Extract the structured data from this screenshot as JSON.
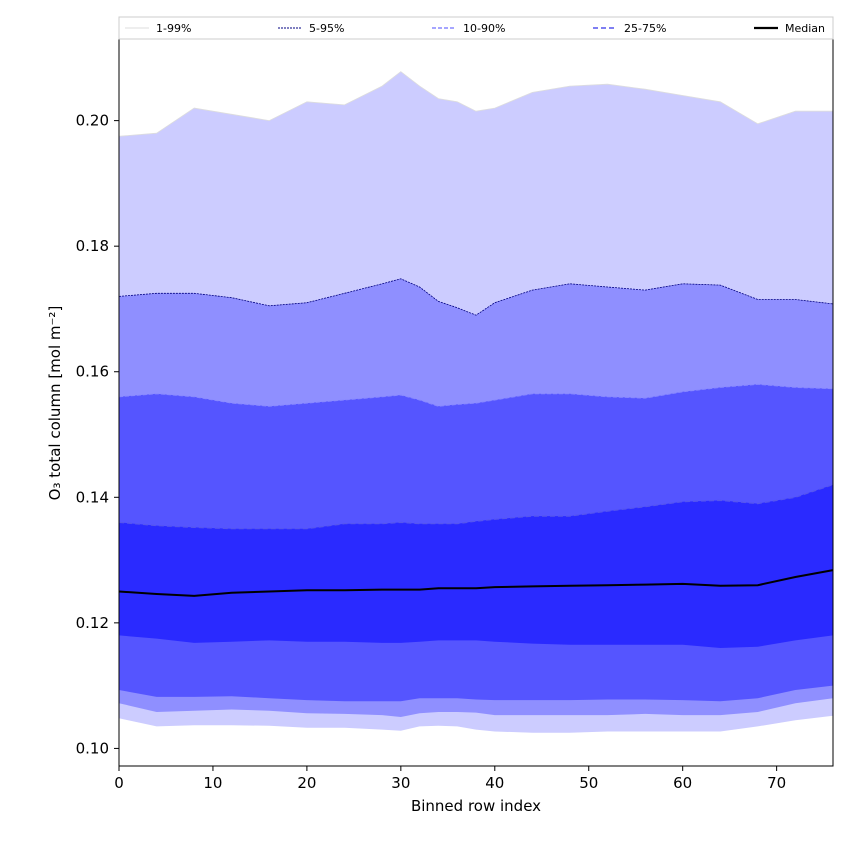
{
  "chart_data": {
    "type": "area",
    "xlabel": "Binned row index",
    "ylabel": "O₃ total column [mol m⁻²]",
    "xlim": [
      0,
      76
    ],
    "ylim": [
      0.0972,
      0.213
    ],
    "xticks": [
      0,
      10,
      20,
      30,
      40,
      50,
      60,
      70
    ],
    "yticks": [
      0.1,
      0.12,
      0.14,
      0.16,
      0.18,
      0.2
    ],
    "grid": false,
    "legend_placement": "top, across the plot width",
    "colors": {
      "band_1_99": "#ccccff",
      "band_5_95": "#8f8fff",
      "band_10_90": "#5555ff",
      "band_25_75": "#2a2aff",
      "median": "#000000",
      "edge_1_99": "#dddddd",
      "edge_5_95": "#000080",
      "edge_10_90": "#8888ff",
      "edge_25_75": "#5555ee"
    },
    "legend": [
      {
        "key": "p1_99",
        "label": "1-99%"
      },
      {
        "key": "p5_95",
        "label": "5-95%"
      },
      {
        "key": "p10_90",
        "label": "10-90%"
      },
      {
        "key": "p25_75",
        "label": "25-75%"
      },
      {
        "key": "median",
        "label": "Median"
      }
    ],
    "x": [
      0,
      4,
      8,
      12,
      16,
      20,
      24,
      28,
      30,
      32,
      34,
      36,
      38,
      40,
      44,
      48,
      52,
      56,
      60,
      64,
      68,
      72,
      76
    ],
    "series": [
      {
        "key": "p1_upper",
        "values": [
          0.1975,
          0.198,
          0.202,
          0.201,
          0.2,
          0.203,
          0.2025,
          0.2055,
          0.2078,
          0.2055,
          0.2035,
          0.203,
          0.2015,
          0.202,
          0.2045,
          0.2055,
          0.2058,
          0.205,
          0.204,
          0.203,
          0.1995,
          0.2015,
          0.2015
        ]
      },
      {
        "key": "p5_upper",
        "values": [
          0.172,
          0.1725,
          0.1725,
          0.1718,
          0.1705,
          0.171,
          0.1725,
          0.174,
          0.1748,
          0.1735,
          0.1712,
          0.1702,
          0.169,
          0.171,
          0.173,
          0.174,
          0.1735,
          0.173,
          0.174,
          0.1738,
          0.1715,
          0.1715,
          0.1708
        ]
      },
      {
        "key": "p10_upper",
        "values": [
          0.156,
          0.1565,
          0.156,
          0.155,
          0.1545,
          0.155,
          0.1555,
          0.156,
          0.1563,
          0.1555,
          0.1545,
          0.1548,
          0.155,
          0.1555,
          0.1565,
          0.1565,
          0.156,
          0.1558,
          0.1568,
          0.1575,
          0.158,
          0.1575,
          0.1573
        ]
      },
      {
        "key": "p25_upper",
        "values": [
          0.136,
          0.1355,
          0.1352,
          0.135,
          0.135,
          0.135,
          0.1358,
          0.1358,
          0.136,
          0.1358,
          0.1358,
          0.1358,
          0.1362,
          0.1365,
          0.137,
          0.137,
          0.1378,
          0.1385,
          0.1393,
          0.1395,
          0.139,
          0.14,
          0.142
        ]
      },
      {
        "key": "median",
        "values": [
          0.125,
          0.1246,
          0.1243,
          0.1248,
          0.125,
          0.1252,
          0.1252,
          0.1253,
          0.1253,
          0.1253,
          0.1255,
          0.1255,
          0.1255,
          0.1257,
          0.1258,
          0.1259,
          0.126,
          0.1261,
          0.1262,
          0.1259,
          0.126,
          0.1273,
          0.1284
        ]
      },
      {
        "key": "p25_lower",
        "values": [
          0.118,
          0.1175,
          0.1168,
          0.117,
          0.1172,
          0.117,
          0.117,
          0.1168,
          0.1168,
          0.117,
          0.1172,
          0.1172,
          0.1172,
          0.117,
          0.1167,
          0.1165,
          0.1165,
          0.1165,
          0.1165,
          0.116,
          0.1162,
          0.1172,
          0.118
        ]
      },
      {
        "key": "p10_lower",
        "values": [
          0.1093,
          0.1082,
          0.1082,
          0.1083,
          0.108,
          0.1077,
          0.1075,
          0.1075,
          0.1075,
          0.108,
          0.108,
          0.108,
          0.1078,
          0.1077,
          0.1077,
          0.1077,
          0.1078,
          0.1078,
          0.1077,
          0.1075,
          0.108,
          0.1093,
          0.11
        ]
      },
      {
        "key": "p5_lower",
        "values": [
          0.1072,
          0.1058,
          0.106,
          0.1062,
          0.106,
          0.1056,
          0.1055,
          0.1053,
          0.105,
          0.1056,
          0.1058,
          0.1058,
          0.1057,
          0.1053,
          0.1053,
          0.1053,
          0.1053,
          0.1055,
          0.1053,
          0.1053,
          0.1058,
          0.1072,
          0.108
        ]
      },
      {
        "key": "p1_lower",
        "values": [
          0.1048,
          0.1035,
          0.1037,
          0.1037,
          0.1036,
          0.1033,
          0.1033,
          0.103,
          0.1028,
          0.1035,
          0.1036,
          0.1035,
          0.103,
          0.1027,
          0.1025,
          0.1025,
          0.1027,
          0.1027,
          0.1027,
          0.1027,
          0.1035,
          0.1045,
          0.1052
        ]
      }
    ]
  }
}
